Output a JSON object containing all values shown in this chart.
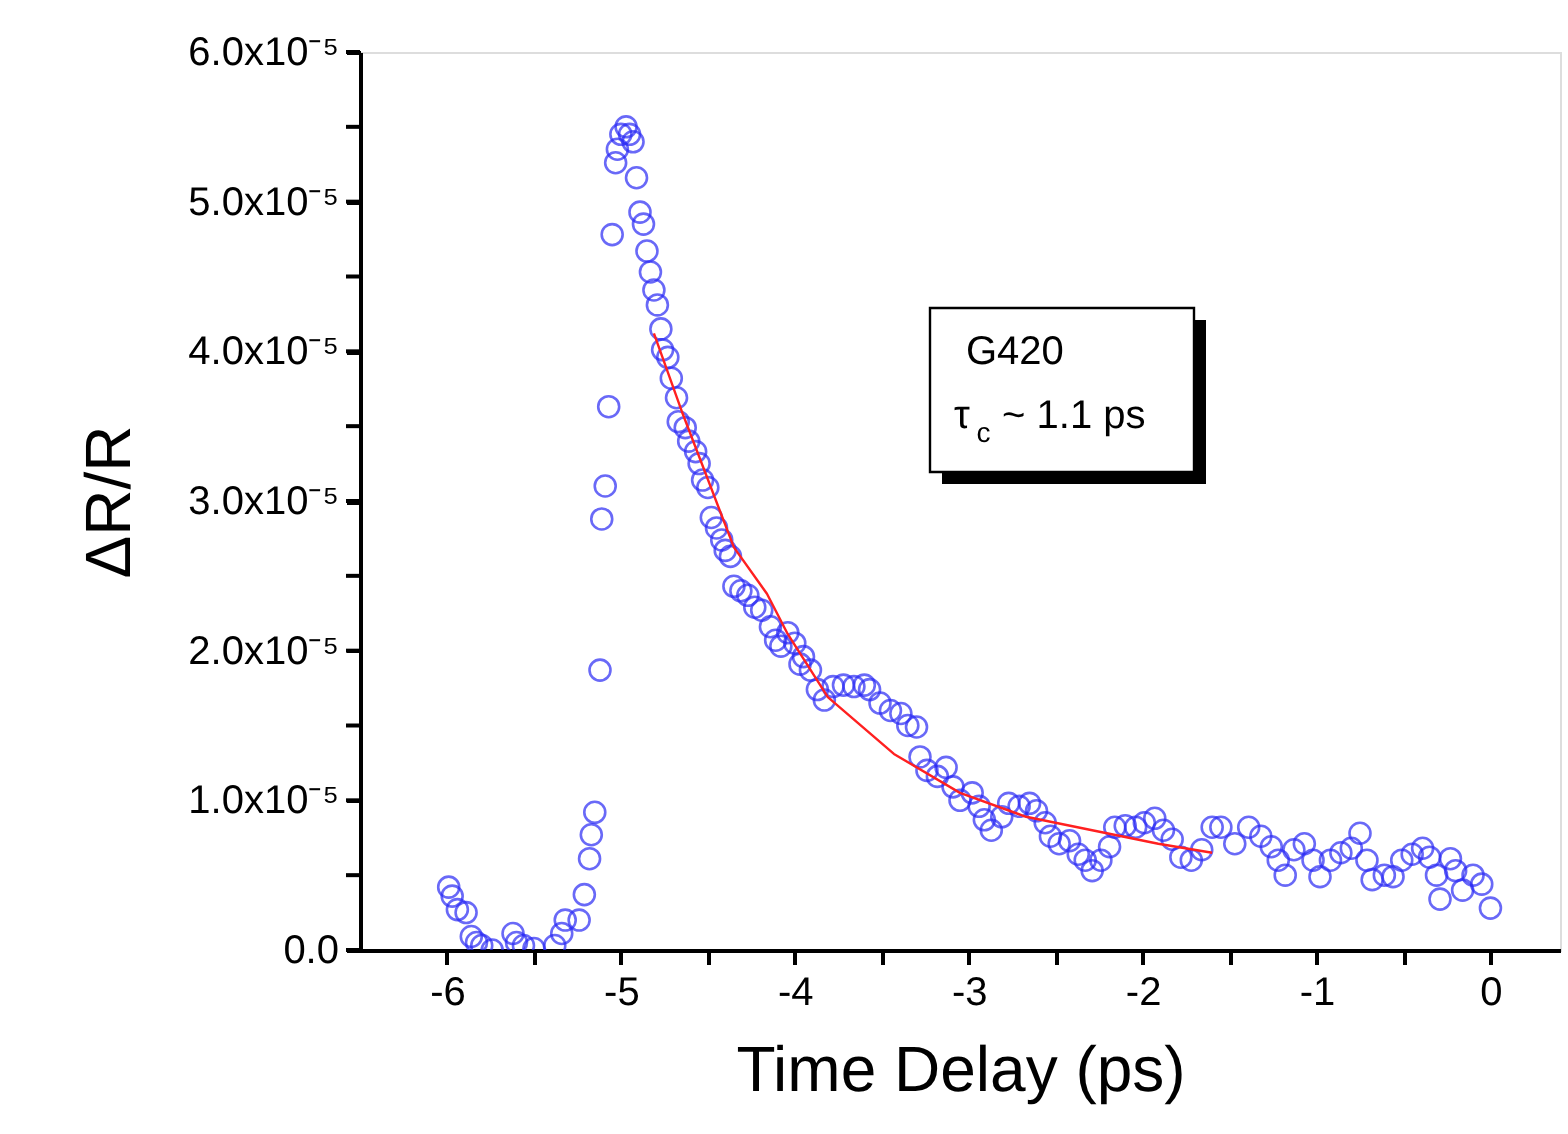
{
  "chart_data": {
    "type": "scatter",
    "xlabel": "Time Delay (ps)",
    "ylabel": "ΔR/R",
    "xlim": [
      -6.5,
      0.4
    ],
    "ylim": [
      0,
      6e-05
    ],
    "xticks": [
      -6,
      {
        "value": -5.5,
        "label": null
      },
      -5,
      {
        "value": -4.5,
        "label": null
      },
      -4,
      {
        "value": -3.5,
        "label": null
      },
      -3,
      {
        "value": -2.5,
        "label": null
      },
      -2,
      {
        "value": -1.5,
        "label": null
      },
      -1,
      {
        "value": -0.5,
        "label": null
      },
      0
    ],
    "yticks": [
      {
        "value": 0,
        "label": "0.0"
      },
      {
        "value": 5e-06,
        "label": null
      },
      {
        "value": 1e-05,
        "label": "1.0x10⁻⁵"
      },
      {
        "value": 1.5e-05,
        "label": null
      },
      {
        "value": 2e-05,
        "label": "2.0x10⁻⁵"
      },
      {
        "value": 2.5e-05,
        "label": null
      },
      {
        "value": 3e-05,
        "label": "3.0x10⁻⁵"
      },
      {
        "value": 3.5e-05,
        "label": null
      },
      {
        "value": 4e-05,
        "label": "4.0x10⁻⁵"
      },
      {
        "value": 4.5e-05,
        "label": null
      },
      {
        "value": 5e-05,
        "label": "5.0x10⁻⁵"
      },
      {
        "value": 5.5e-05,
        "label": null
      },
      {
        "value": 6e-05,
        "label": "6.0x10⁻⁵"
      }
    ],
    "grid": false,
    "annotations": [
      "G420",
      "τ$_{c}$ ~ 1.1 ps"
    ],
    "series": [
      {
        "marker": "circle",
        "color": "#2a2af5",
        "x": [
          -5.99,
          -5.97,
          -5.94,
          -5.89,
          -5.86,
          -5.83,
          -5.8,
          -5.74,
          -5.62,
          -5.6,
          -5.56,
          -5.5,
          -5.38,
          -5.34,
          -5.32,
          -5.24,
          -5.21,
          -5.18,
          -5.17,
          -5.15,
          -5.12,
          -5.11,
          -5.09,
          -5.07,
          -5.05,
          -5.03,
          -5.02,
          -5.0,
          -4.97,
          -4.95,
          -4.93,
          -4.91,
          -4.89,
          -4.87,
          -4.85,
          -4.83,
          -4.81,
          -4.79,
          -4.77,
          -4.76,
          -4.73,
          -4.71,
          -4.68,
          -4.67,
          -4.63,
          -4.61,
          -4.57,
          -4.55,
          -4.53,
          -4.5,
          -4.48,
          -4.45,
          -4.42,
          -4.4,
          -4.37,
          -4.35,
          -4.31,
          -4.27,
          -4.23,
          -4.19,
          -4.14,
          -4.11,
          -4.08,
          -4.04,
          -4.0,
          -3.97,
          -3.95,
          -3.91,
          -3.87,
          -3.83,
          -3.78,
          -3.72,
          -3.66,
          -3.6,
          -3.57,
          -3.51,
          -3.45,
          -3.39,
          -3.35,
          -3.3,
          -3.28,
          -3.24,
          -3.18,
          -3.13,
          -3.09,
          -3.05,
          -2.98,
          -2.94,
          -2.91,
          -2.87,
          -2.81,
          -2.77,
          -2.71,
          -2.65,
          -2.61,
          -2.56,
          -2.53,
          -2.48,
          -2.42,
          -2.37,
          -2.33,
          -2.29,
          -2.24,
          -2.19,
          -2.16,
          -2.1,
          -2.04,
          -1.99,
          -1.93,
          -1.88,
          -1.83,
          -1.78,
          -1.72,
          -1.66,
          -1.6,
          -1.55,
          -1.47,
          -1.39,
          -1.32,
          -1.26,
          -1.22,
          -1.18,
          -1.13,
          -1.07,
          -1.02,
          -0.98,
          -0.92,
          -0.86,
          -0.8,
          -0.75,
          -0.71,
          -0.68,
          -0.61,
          -0.56,
          -0.51,
          -0.45,
          -0.39,
          -0.35,
          -0.31,
          -0.29,
          -0.23,
          -0.2,
          -0.16,
          -0.1,
          -0.05,
          0.0
        ],
        "values": [
          4.2e-06,
          3.6e-06,
          2.7e-06,
          2.5e-06,
          9e-07,
          5e-07,
          3e-07,
          0.0,
          1.1e-06,
          5e-07,
          3e-07,
          1e-07,
          3e-07,
          1.1e-06,
          2e-06,
          2e-06,
          3.7e-06,
          6.1e-06,
          7.7e-06,
          9.2e-06,
          1.87e-05,
          2.88e-05,
          3.1e-05,
          3.63e-05,
          4.78e-05,
          5.26e-05,
          5.35e-05,
          5.45e-05,
          5.5e-05,
          5.45e-05,
          5.4e-05,
          5.16e-05,
          4.93e-05,
          4.85e-05,
          4.67e-05,
          4.53e-05,
          4.41e-05,
          4.31e-05,
          4.15e-05,
          4.01e-05,
          3.96e-05,
          3.82e-05,
          3.69e-05,
          3.53e-05,
          3.49e-05,
          3.4e-05,
          3.33e-05,
          3.25e-05,
          3.14e-05,
          3.09e-05,
          2.89e-05,
          2.82e-05,
          2.74e-05,
          2.67e-05,
          2.63e-05,
          2.43e-05,
          2.4e-05,
          2.37e-05,
          2.29e-05,
          2.27e-05,
          2.16e-05,
          2.07e-05,
          2.03e-05,
          2.12e-05,
          2.05e-05,
          1.91e-05,
          1.96e-05,
          1.87e-05,
          1.74e-05,
          1.67e-05,
          1.76e-05,
          1.77e-05,
          1.76e-05,
          1.77e-05,
          1.74e-05,
          1.65e-05,
          1.6e-05,
          1.58e-05,
          1.5e-05,
          1.49e-05,
          1.29e-05,
          1.2e-05,
          1.16e-05,
          1.22e-05,
          1.09e-05,
          1e-05,
          1.05e-05,
          9.6e-06,
          8.7e-06,
          8e-06,
          8.9e-06,
          9.8e-06,
          9.6e-06,
          9.8e-06,
          9.3e-06,
          8.5e-06,
          7.6e-06,
          7.1e-06,
          7.3e-06,
          6.4e-06,
          6e-06,
          5.3e-06,
          6e-06,
          6.9e-06,
          8.2e-06,
          8.3e-06,
          8.2e-06,
          8.5e-06,
          8.8e-06,
          8e-06,
          7.4e-06,
          6.2e-06,
          6e-06,
          6.7e-06,
          8.2e-06,
          8.2e-06,
          7.1e-06,
          8.2e-06,
          7.6e-06,
          6.9e-06,
          6e-06,
          5e-06,
          6.7e-06,
          7.1e-06,
          6e-06,
          4.9e-06,
          6e-06,
          6.5e-06,
          6.8e-06,
          7.8e-06,
          6e-06,
          4.7e-06,
          5e-06,
          4.9e-06,
          6e-06,
          6.4e-06,
          6.8e-06,
          6.2e-06,
          5e-06,
          3.4e-06,
          6.1e-06,
          5.3e-06,
          4e-06,
          5e-06,
          4.4e-06,
          2.8e-06
        ]
      },
      {
        "type": "line",
        "line_style": "solid",
        "color": "#ff2020",
        "x": [
          -4.81,
          -4.65,
          -4.35,
          -4.16,
          -4.04,
          -3.81,
          -3.43,
          -3.05,
          -2.67,
          -2.29,
          -1.91,
          -1.6
        ],
        "values": [
          4.12e-05,
          3.6e-05,
          2.69e-05,
          2.38e-05,
          2.11e-05,
          1.69e-05,
          1.31e-05,
          1.05e-05,
          8.9e-06,
          8e-06,
          7.1e-06,
          6.5e-06
        ]
      }
    ]
  }
}
